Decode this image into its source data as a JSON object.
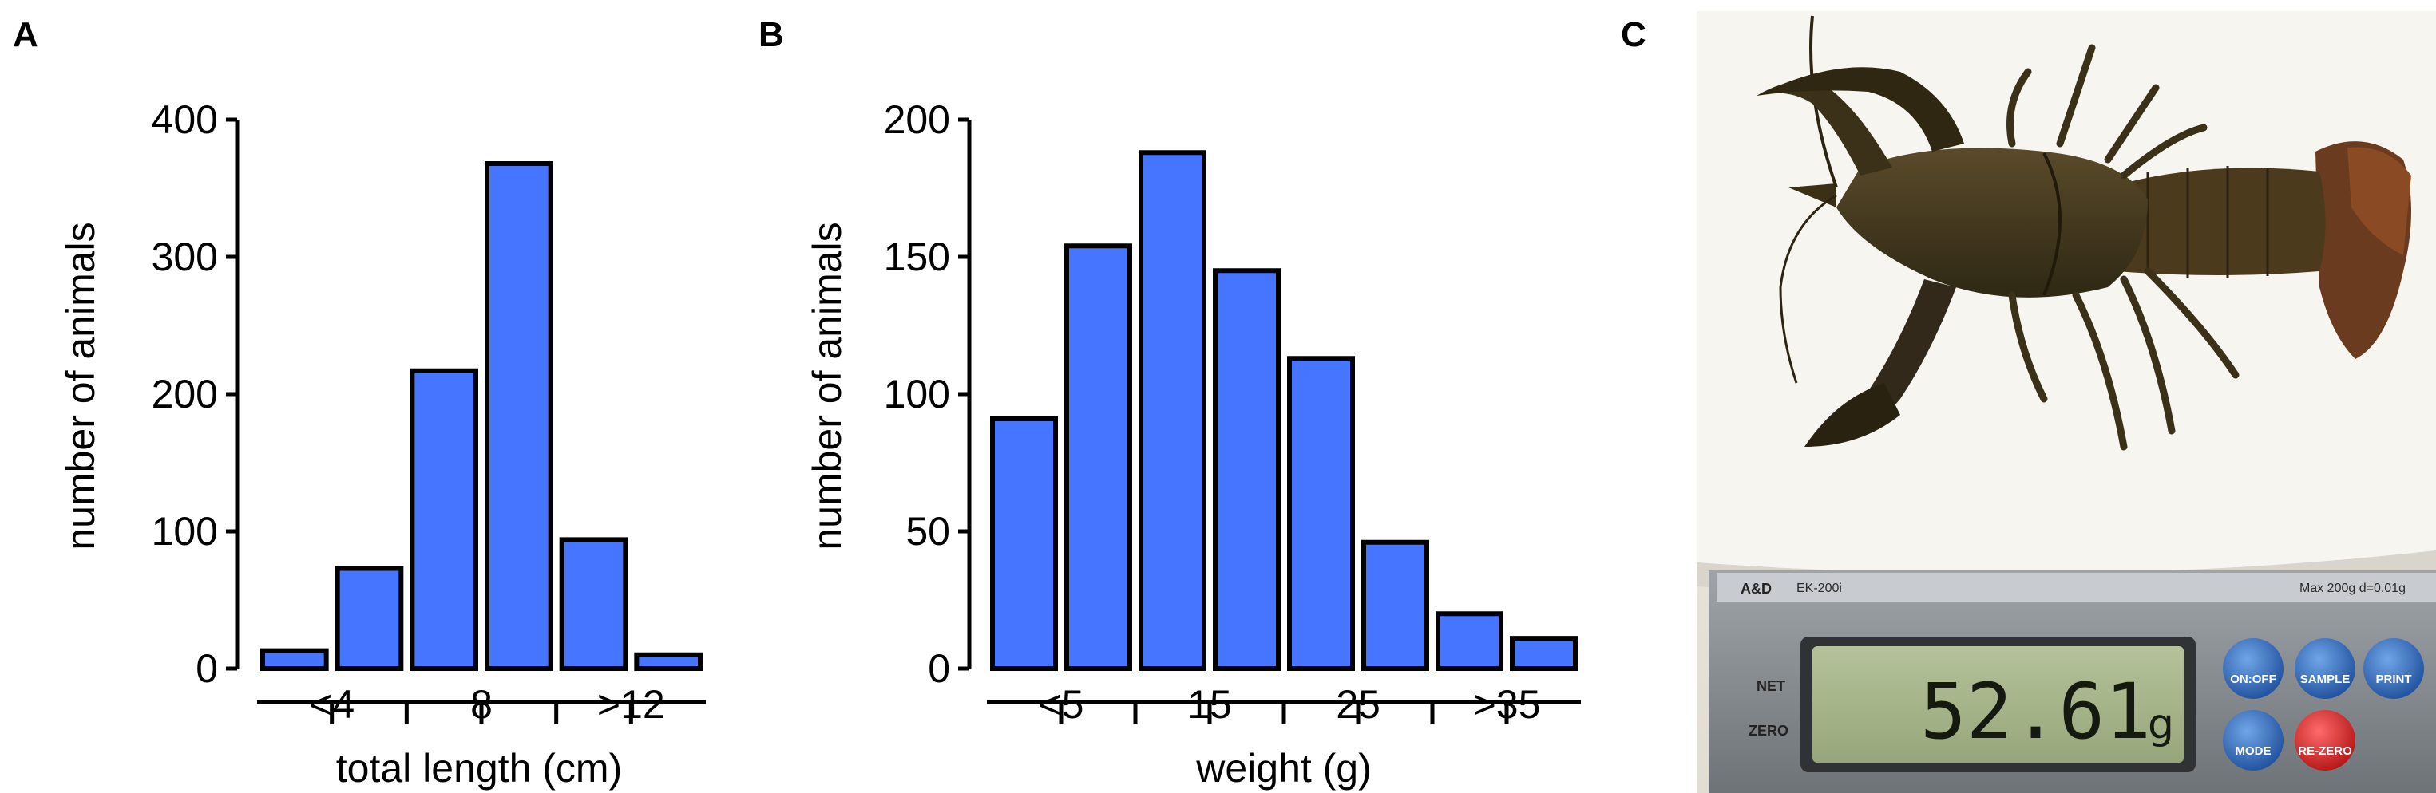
{
  "panels": {
    "a_letter": "A",
    "b_letter": "B",
    "c_letter": "C"
  },
  "chart_data": [
    {
      "type": "bar",
      "bars": [
        {
          "x": 3,
          "value": 13
        },
        {
          "x": 5,
          "value": 73
        },
        {
          "x": 7,
          "value": 217
        },
        {
          "x": 9,
          "value": 368
        },
        {
          "x": 11,
          "value": 94
        },
        {
          "x": 13,
          "value": 10
        }
      ],
      "x_range": [
        2,
        14
      ],
      "x_ticks": [
        4,
        6,
        8,
        10,
        12
      ],
      "x_tick_labels": [
        {
          "x": 4,
          "label": "<4"
        },
        {
          "x": 8,
          "label": "8"
        },
        {
          "x": 12,
          "label": ">12"
        }
      ],
      "y_range": [
        0,
        400
      ],
      "y_ticks": [
        0,
        100,
        200,
        300,
        400
      ],
      "xlabel": "total length (cm)",
      "ylabel": "number of animals",
      "bar_color": "#4675ff",
      "grid": false
    },
    {
      "type": "bar",
      "bars": [
        {
          "x": 2.5,
          "value": 91
        },
        {
          "x": 7.5,
          "value": 154
        },
        {
          "x": 12.5,
          "value": 188
        },
        {
          "x": 17.5,
          "value": 145
        },
        {
          "x": 22.5,
          "value": 113
        },
        {
          "x": 27.5,
          "value": 46
        },
        {
          "x": 32.5,
          "value": 20
        },
        {
          "x": 37.5,
          "value": 11
        }
      ],
      "x_range": [
        0,
        40
      ],
      "x_ticks": [
        5,
        10,
        15,
        20,
        25,
        30,
        35
      ],
      "x_tick_labels": [
        {
          "x": 5,
          "label": "<5"
        },
        {
          "x": 15,
          "label": "15"
        },
        {
          "x": 25,
          "label": "25"
        },
        {
          "x": 35,
          "label": ">35"
        }
      ],
      "y_range": [
        0,
        200
      ],
      "y_ticks": [
        0,
        50,
        100,
        150,
        200
      ],
      "xlabel": "weight (g)",
      "ylabel": "number of animals",
      "bar_color": "#4675ff",
      "grid": false
    }
  ],
  "photo": {
    "scale_brand": "A&D",
    "scale_model": "EK-200i",
    "scale_spec": "Max 200g d=0.01g",
    "display_reading": "52.61",
    "display_unit": "g",
    "side_net": "NET",
    "side_zero": "ZERO",
    "btn_onoff": "ON:OFF",
    "btn_sample": "SAMPLE",
    "btn_print": "PRINT",
    "btn_mode": "MODE",
    "btn_rezero": "RE-ZERO"
  }
}
